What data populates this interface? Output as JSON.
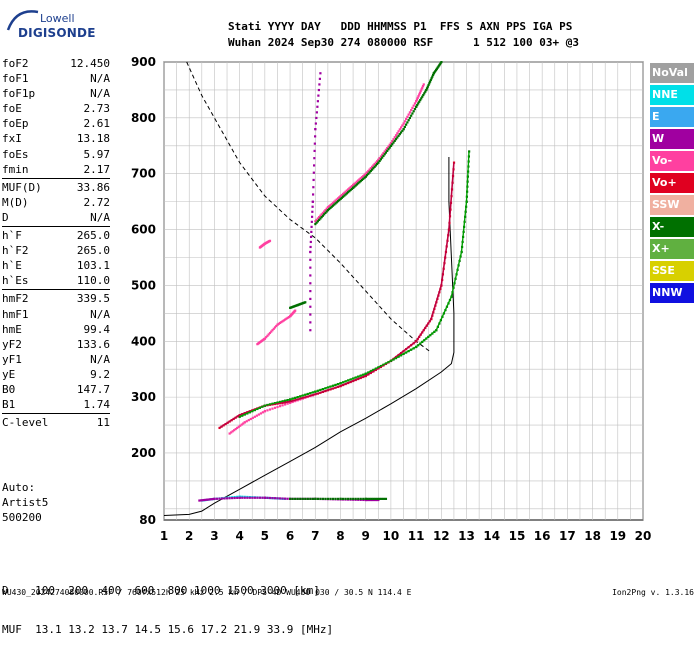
{
  "logo": {
    "top": "Lowell",
    "bottom": "DIGISONDE"
  },
  "header": {
    "line1": "Stati YYYY DAY   DDD HHMMSS P1  FFS S AXN PPS IGA PS",
    "line2": "Wuhan 2024 Sep30 274 080000 RSF      1 512 100 03+ @3"
  },
  "params": [
    {
      "label": "foF2",
      "value": "12.450"
    },
    {
      "label": "foF1",
      "value": "N/A"
    },
    {
      "label": "foF1p",
      "value": "N/A"
    },
    {
      "label": "foE",
      "value": "2.73"
    },
    {
      "label": "foEp",
      "value": "2.61"
    },
    {
      "label": "fxI",
      "value": "13.18"
    },
    {
      "label": "foEs",
      "value": "5.97"
    },
    {
      "label": "fmin",
      "value": "2.17"
    },
    {
      "sep": true
    },
    {
      "label": "MUF(D)",
      "value": "33.86"
    },
    {
      "label": "M(D)",
      "value": "2.72"
    },
    {
      "label": "D",
      "value": "N/A"
    },
    {
      "sep": true
    },
    {
      "label": "h`F",
      "value": "265.0"
    },
    {
      "label": "h`F2",
      "value": "265.0"
    },
    {
      "label": "h`E",
      "value": "103.1"
    },
    {
      "label": "h`Es",
      "value": "110.0"
    },
    {
      "sep": true
    },
    {
      "label": "hmF2",
      "value": "339.5"
    },
    {
      "label": "hmF1",
      "value": "N/A"
    },
    {
      "label": "hmE",
      "value": "99.4"
    },
    {
      "label": "yF2",
      "value": "133.6"
    },
    {
      "label": "yF1",
      "value": "N/A"
    },
    {
      "label": "yE",
      "value": "9.2"
    },
    {
      "label": "B0",
      "value": "147.7"
    },
    {
      "label": "B1",
      "value": "1.74"
    },
    {
      "sep": true
    },
    {
      "label": "C-level",
      "value": "11"
    }
  ],
  "auto": [
    "Auto:",
    "Artist5",
    "500200"
  ],
  "legend": [
    {
      "label": "NoVal",
      "color": "#a0a0a0"
    },
    {
      "label": "NNE",
      "color": "#00e0e8"
    },
    {
      "label": "E",
      "color": "#3aa8f0"
    },
    {
      "label": "W",
      "color": "#a000a0"
    },
    {
      "label": "Vo-",
      "color": "#ff40a0"
    },
    {
      "label": "Vo+",
      "color": "#e00020"
    },
    {
      "label": "SSW",
      "color": "#f0b0a0"
    },
    {
      "label": "X-",
      "color": "#007000"
    },
    {
      "label": "X+",
      "color": "#60b040"
    },
    {
      "label": "SSE",
      "color": "#d8d000"
    },
    {
      "label": "NNW",
      "color": "#1010e0"
    }
  ],
  "bottom": {
    "d_line": "D    100  200  400  600  800 1000 1500 3000 [km]",
    "muf_line": "MUF  13.1 13.2 13.7 14.5 15.6 17.2 21.9 33.9 [MHz]"
  },
  "footer": "WU430_2024274080000.RSF / 760fx512h 25 kHz 2.5 km / DPS-4D WU430 030 / 30.5 N 114.4 E",
  "version": "Ion2Png v. 1.3.16",
  "chart_data": {
    "type": "scatter",
    "x_ticks": [
      1,
      2,
      3,
      4,
      5,
      6,
      7,
      8,
      9,
      10,
      11,
      12,
      13,
      14,
      15,
      16,
      17,
      18,
      19,
      20
    ],
    "y_ticks": [
      80,
      200,
      300,
      400,
      500,
      600,
      700,
      800,
      900
    ],
    "xlim": [
      1,
      20
    ],
    "ylim": [
      80,
      900
    ],
    "grid": true,
    "series": [
      {
        "name": "Vo+",
        "color": "#e00020",
        "points": [
          [
            3.2,
            245
          ],
          [
            4,
            268
          ],
          [
            5,
            285
          ],
          [
            6,
            292
          ],
          [
            7,
            305
          ],
          [
            8,
            320
          ],
          [
            9,
            338
          ],
          [
            10,
            365
          ],
          [
            11,
            400
          ],
          [
            11.6,
            440
          ],
          [
            12,
            500
          ],
          [
            12.3,
            600
          ],
          [
            12.5,
            720
          ]
        ]
      },
      {
        "name": "X-",
        "color": "#007000",
        "points": [
          [
            4,
            265
          ],
          [
            5,
            285
          ],
          [
            6,
            296
          ],
          [
            7,
            310
          ],
          [
            8,
            325
          ],
          [
            9,
            342
          ],
          [
            10,
            365
          ],
          [
            11,
            390
          ],
          [
            11.8,
            420
          ],
          [
            12.4,
            480
          ],
          [
            12.8,
            560
          ],
          [
            13.0,
            650
          ],
          [
            13.1,
            740
          ]
        ]
      },
      {
        "name": "Vo-",
        "color": "#ff40a0",
        "points": [
          [
            3.6,
            235
          ],
          [
            4.2,
            255
          ],
          [
            5,
            275
          ],
          [
            6,
            290
          ],
          [
            7,
            305
          ]
        ]
      },
      {
        "name": "NNE",
        "color": "#00e0e8",
        "points": [
          [
            2.5,
            115
          ],
          [
            3,
            118
          ],
          [
            4,
            122
          ],
          [
            5,
            120
          ],
          [
            5.8,
            118
          ]
        ]
      },
      {
        "name": "W",
        "color": "#a000a0",
        "points": [
          [
            6.8,
            420
          ],
          [
            6.8,
            560
          ],
          [
            6.9,
            650
          ],
          [
            7,
            780
          ],
          [
            7.2,
            880
          ]
        ]
      }
    ],
    "profile": [
      [
        1,
        88
      ],
      [
        2,
        90
      ],
      [
        2.5,
        96
      ],
      [
        3,
        110
      ],
      [
        4,
        135
      ],
      [
        5,
        160
      ],
      [
        6,
        185
      ],
      [
        7,
        210
      ],
      [
        8,
        238
      ],
      [
        9,
        262
      ],
      [
        10,
        288
      ],
      [
        11,
        315
      ],
      [
        12,
        345
      ],
      [
        12.4,
        360
      ],
      [
        12.5,
        380
      ],
      [
        12.5,
        450
      ],
      [
        12.4,
        550
      ],
      [
        12.3,
        650
      ],
      [
        12.3,
        730
      ]
    ],
    "dashed_curve": [
      [
        1.9,
        900
      ],
      [
        2.5,
        840
      ],
      [
        3,
        800
      ],
      [
        4,
        720
      ],
      [
        5,
        660
      ],
      [
        6,
        618
      ],
      [
        7,
        585
      ],
      [
        8,
        540
      ],
      [
        9,
        490
      ],
      [
        10,
        440
      ],
      [
        11,
        400
      ],
      [
        11.6,
        380
      ]
    ],
    "trace_points": [
      {
        "color": "#ff40a0",
        "points": [
          [
            7,
            615
          ],
          [
            7.5,
            640
          ],
          [
            8,
            660
          ],
          [
            8.5,
            680
          ],
          [
            9,
            700
          ],
          [
            9.5,
            725
          ],
          [
            10,
            755
          ],
          [
            10.5,
            790
          ],
          [
            11,
            830
          ],
          [
            11.3,
            860
          ]
        ]
      },
      {
        "color": "#007000",
        "points": [
          [
            7,
            610
          ],
          [
            7.5,
            635
          ],
          [
            8,
            655
          ],
          [
            8.5,
            675
          ],
          [
            9,
            695
          ],
          [
            9.5,
            720
          ],
          [
            10,
            750
          ],
          [
            10.5,
            780
          ],
          [
            11,
            820
          ],
          [
            11.4,
            850
          ],
          [
            11.7,
            880
          ],
          [
            12,
            900
          ]
        ]
      },
      {
        "color": "#ff40a0",
        "points": [
          [
            4.7,
            395
          ],
          [
            5,
            405
          ],
          [
            5.5,
            430
          ],
          [
            6,
            445
          ],
          [
            6.2,
            455
          ]
        ]
      },
      {
        "color": "#007000",
        "points": [
          [
            6,
            460
          ],
          [
            6.3,
            465
          ],
          [
            6.6,
            470
          ]
        ]
      },
      {
        "color": "#ff40a0",
        "points": [
          [
            4.8,
            568
          ],
          [
            5,
            575
          ],
          [
            5.2,
            580
          ]
        ]
      },
      {
        "color": "#a000a0",
        "points": [
          [
            2.4,
            115
          ],
          [
            3,
            118
          ],
          [
            4,
            120
          ],
          [
            5,
            120
          ],
          [
            6,
            118
          ],
          [
            7,
            118
          ],
          [
            8,
            117
          ],
          [
            9,
            116
          ],
          [
            9.5,
            116
          ]
        ]
      },
      {
        "color": "#007000",
        "points": [
          [
            6,
            118
          ],
          [
            7,
            118
          ],
          [
            8,
            118
          ],
          [
            9,
            118
          ],
          [
            9.8,
            118
          ]
        ]
      }
    ]
  }
}
